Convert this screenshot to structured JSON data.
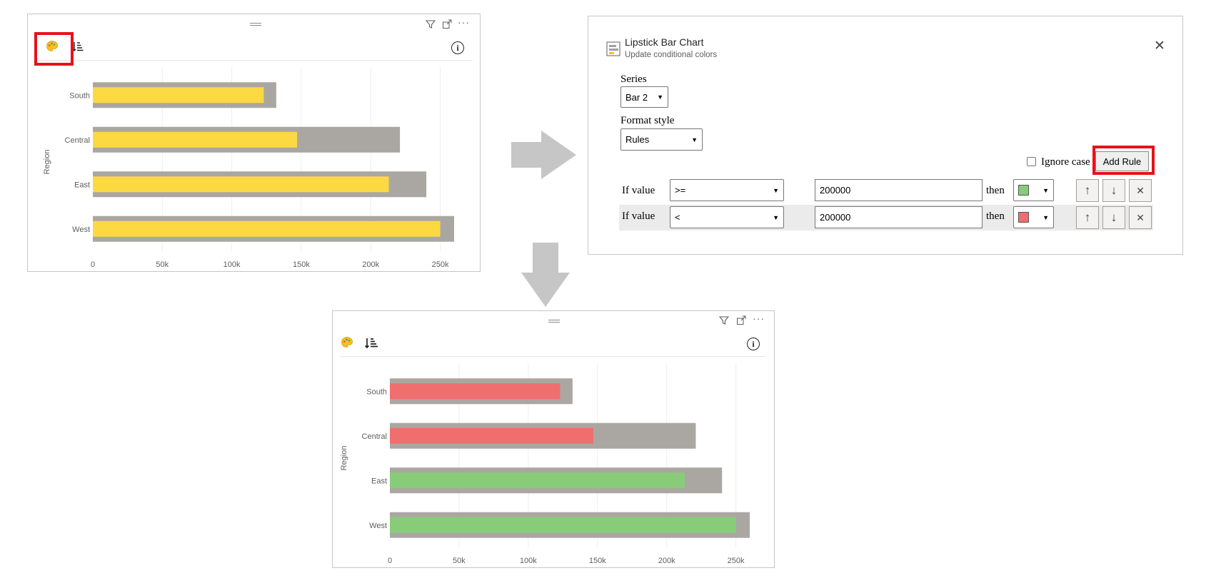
{
  "visuals": [
    {
      "id": "before",
      "palette_icon": "palette-icon",
      "sort_icon": "sort-icon",
      "info_icon": "info-icon",
      "filter_icon": "filter-icon",
      "focus_icon": "focus-mode-icon",
      "more_icon": "more-options-icon",
      "more_label": "···",
      "info_label": "i",
      "colors": {
        "background": "#aaa7a3",
        "bar": [
          "#fcd942",
          "#fcd942",
          "#fcd942",
          "#fcd942"
        ]
      }
    },
    {
      "id": "after",
      "palette_icon": "palette-icon",
      "sort_icon": "sort-icon",
      "info_icon": "info-icon",
      "filter_icon": "filter-icon",
      "focus_icon": "focus-mode-icon",
      "more_icon": "more-options-icon",
      "more_label": "···",
      "info_label": "i",
      "colors": {
        "background": "#aaa7a3",
        "bar": [
          "#f06e6e",
          "#f06e6e",
          "#88cc79",
          "#88cc79"
        ]
      }
    }
  ],
  "chart_data": [
    {
      "type": "bar",
      "orientation": "horizontal",
      "categories": [
        "South",
        "Central",
        "East",
        "West"
      ],
      "series": [
        {
          "values": [
            132000,
            221000,
            240000,
            260000
          ]
        },
        {
          "values": [
            123000,
            147000,
            213000,
            250000
          ]
        }
      ],
      "xticks": [
        "0",
        "50k",
        "100k",
        "150k",
        "200k",
        "250k"
      ],
      "xlim": [
        0,
        260000
      ],
      "ylabel": "Region",
      "grid": true
    },
    {
      "type": "bar",
      "orientation": "horizontal",
      "categories": [
        "South",
        "Central",
        "East",
        "West"
      ],
      "series": [
        {
          "values": [
            132000,
            221000,
            240000,
            260000
          ]
        },
        {
          "values": [
            123000,
            147000,
            213000,
            250000
          ]
        }
      ],
      "xticks": [
        "0",
        "50k",
        "100k",
        "150k",
        "200k",
        "250k"
      ],
      "xlim": [
        0,
        260000
      ],
      "ylabel": "Region",
      "grid": true
    }
  ],
  "dialog": {
    "icon": "chart-icon",
    "title": "Lipstick Bar Chart",
    "subtitle": "Update conditional colors",
    "close_label": "✕",
    "series_label": "Series",
    "series_value": "Bar 2",
    "format_style_label": "Format style",
    "format_style_value": "Rules",
    "ignore_case_label": "Ignore case",
    "ignore_case_checked": false,
    "add_rule_label": "Add Rule",
    "rules": [
      {
        "if_label": "If value",
        "operator": ">=",
        "value": "200000",
        "then_label": "then",
        "color": "#88cc79"
      },
      {
        "if_label": "If value",
        "operator": "<",
        "value": "200000",
        "then_label": "then",
        "color": "#f06e6e"
      }
    ],
    "up_label": "↑",
    "down_label": "↓",
    "delete_label": "✕"
  },
  "highlight_color": "#e8111b",
  "arrow_color": "#c6c6c6"
}
